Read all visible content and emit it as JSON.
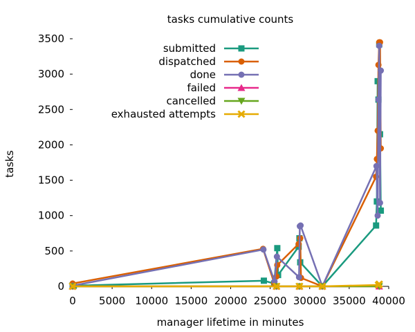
{
  "chart_data": {
    "type": "line",
    "title": "tasks cumulative counts",
    "xlabel": "manager lifetime in minutes",
    "ylabel": "tasks",
    "xlim": [
      0,
      40000
    ],
    "ylim": [
      0,
      3500
    ],
    "xticks": [
      "0",
      "5000",
      "10000",
      "15000",
      "20000",
      "25000",
      "30000",
      "35000",
      "40000"
    ],
    "yticks": [
      "0",
      "500",
      "1000",
      "1500",
      "2000",
      "2500",
      "3000",
      "3500"
    ],
    "grid": false,
    "legend_position": "top-center",
    "series": [
      {
        "name": "submitted",
        "color": "#1a9a7f",
        "marker": "square",
        "x": [
          0,
          150,
          24200,
          25500,
          25900,
          26000,
          28600,
          28700,
          28800,
          31600,
          38400,
          38500,
          38600,
          38700,
          38800,
          38900,
          39000
        ],
        "y": [
          15,
          10,
          80,
          40,
          540,
          160,
          560,
          680,
          340,
          0,
          860,
          1200,
          2900,
          2640,
          3420,
          2150,
          1070
        ]
      },
      {
        "name": "dispatched",
        "color": "#d95f02",
        "marker": "circle",
        "x": [
          0,
          24100,
          25500,
          25800,
          25900,
          28600,
          28800,
          28900,
          31600,
          38400,
          38500,
          38600,
          38700,
          38800,
          38900,
          39000
        ],
        "y": [
          40,
          530,
          50,
          140,
          300,
          600,
          680,
          120,
          0,
          1550,
          1800,
          2200,
          3130,
          3450,
          3450,
          1950
        ]
      },
      {
        "name": "done",
        "color": "#7570b3",
        "marker": "circle",
        "x": [
          0,
          24150,
          25550,
          25850,
          28650,
          28750,
          28850,
          31600,
          38450,
          38600,
          38700,
          38800,
          38900,
          39000
        ],
        "y": [
          10,
          520,
          70,
          420,
          130,
          850,
          860,
          0,
          1700,
          1000,
          2640,
          3400,
          1180,
          3050
        ]
      },
      {
        "name": "failed",
        "color": "#e7298a",
        "marker": "triangle",
        "x": [
          0,
          25800,
          28700,
          31600,
          38800
        ],
        "y": [
          0,
          0,
          0,
          0,
          0
        ]
      },
      {
        "name": "cancelled",
        "color": "#66a61e",
        "marker": "triangle-down",
        "x": [
          0,
          25800,
          28700,
          31600,
          38800
        ],
        "y": [
          0,
          0,
          0,
          0,
          0
        ]
      },
      {
        "name": "exhausted attempts",
        "color": "#e6ab02",
        "marker": "x",
        "x": [
          0,
          25800,
          28700,
          31600,
          38700,
          38800
        ],
        "y": [
          0,
          0,
          0,
          0,
          20,
          30
        ]
      }
    ]
  }
}
